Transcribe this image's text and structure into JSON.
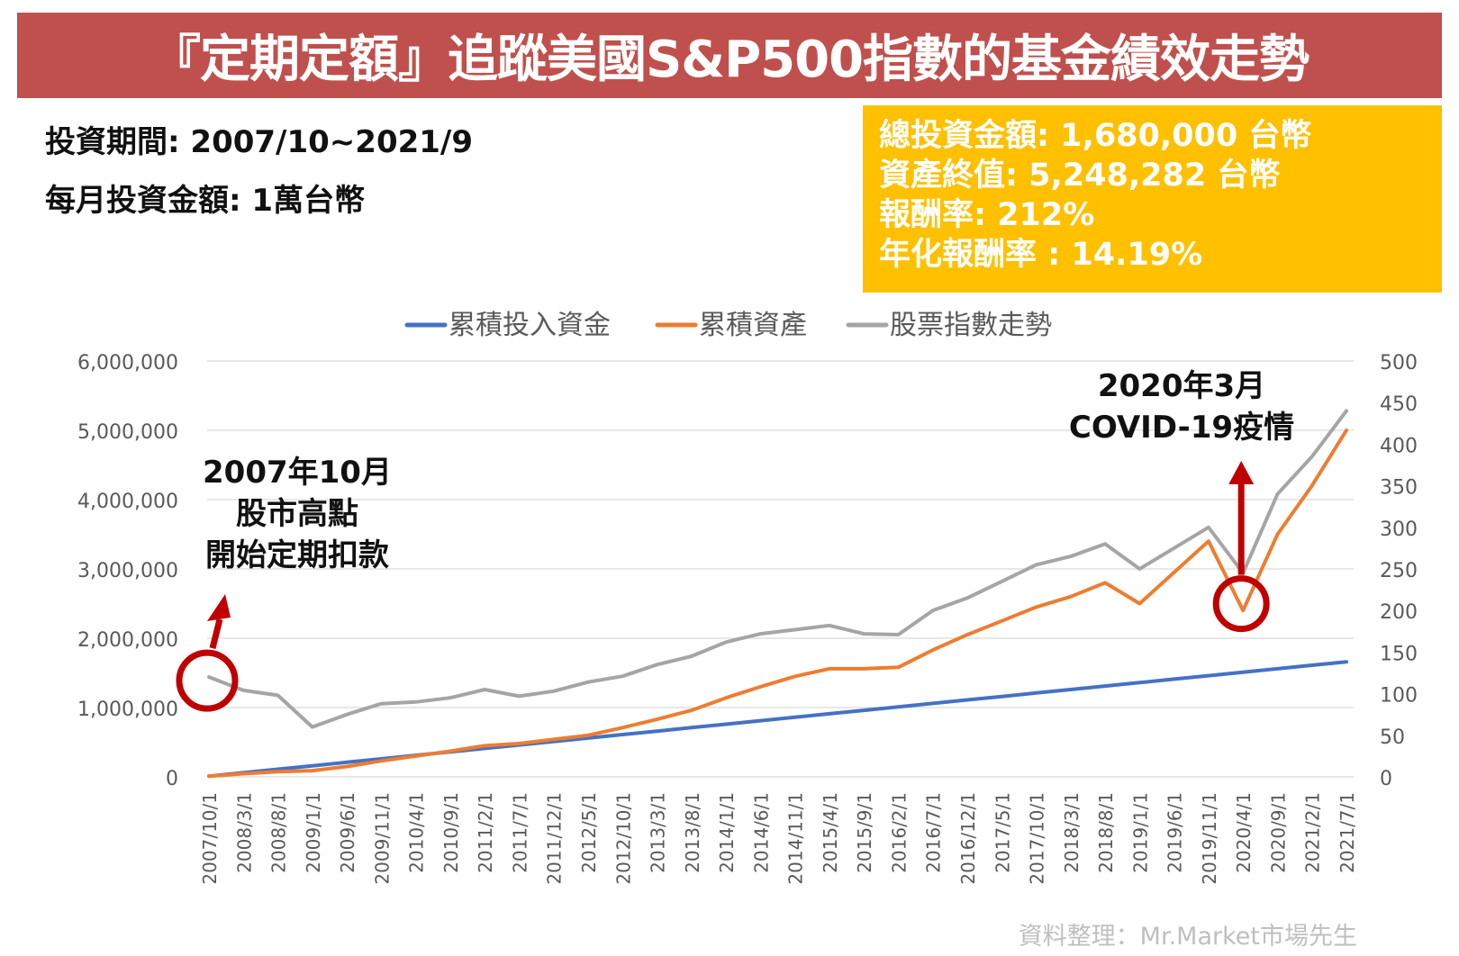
{
  "header": {
    "title": "『定期定額』追蹤美國S&P500指數的基金績效走勢"
  },
  "info": {
    "period": "投資期間: 2007/10~2021/9",
    "monthly": "每月投資金額: 1萬台幣"
  },
  "summary": {
    "total_invested": "總投資金額: 1,680,000 台幣",
    "final_value": "資產終值: 5,248,282 台幣",
    "return_rate": "報酬率: 212%",
    "annualized": "年化報酬率 : 14.19%"
  },
  "annotations": {
    "start_lines": [
      "2007年10月",
      "股市高點",
      "開始定期扣款"
    ],
    "covid_lines": [
      "2020年3月",
      "COVID-19疫情"
    ]
  },
  "source": "資料整理：Mr.Market市場先生",
  "colors": {
    "title_bg": "#c0504d",
    "summary_bg": "#ffc000",
    "invested": "#4472c4",
    "assets": "#ed7d31",
    "index": "#a5a5a5",
    "annotation": "#c00000"
  },
  "chart_data": {
    "type": "line",
    "legend": [
      "累積投入資金",
      "累積資產",
      "股票指數走勢"
    ],
    "legend_position": "top",
    "left_axis": {
      "ylim": [
        0,
        6000000
      ],
      "ticks": [
        "0",
        "1,000,000",
        "2,000,000",
        "3,000,000",
        "4,000,000",
        "5,000,000",
        "6,000,000"
      ]
    },
    "right_axis": {
      "ylim": [
        0,
        500
      ],
      "ticks": [
        "0",
        "50",
        "100",
        "150",
        "200",
        "250",
        "300",
        "350",
        "400",
        "450",
        "500"
      ]
    },
    "x_labels": [
      "2007/10/1",
      "2008/3/1",
      "2008/8/1",
      "2009/1/1",
      "2009/6/1",
      "2009/11/1",
      "2010/4/1",
      "2010/9/1",
      "2011/2/1",
      "2011/7/1",
      "2011/12/1",
      "2012/5/1",
      "2012/10/1",
      "2013/3/1",
      "2013/8/1",
      "2014/1/1",
      "2014/6/1",
      "2014/11/1",
      "2015/4/1",
      "2015/9/1",
      "2016/2/1",
      "2016/7/1",
      "2016/12/1",
      "2017/5/1",
      "2017/10/1",
      "2018/3/1",
      "2018/8/1",
      "2019/1/1",
      "2019/6/1",
      "2019/11/1",
      "2020/4/1",
      "2020/9/1",
      "2021/2/1",
      "2021/7/1"
    ],
    "series": [
      {
        "name": "累積投入資金",
        "axis": "left",
        "values": [
          10000,
          60000,
          110000,
          160000,
          210000,
          260000,
          310000,
          360000,
          410000,
          460000,
          510000,
          560000,
          610000,
          660000,
          710000,
          760000,
          810000,
          860000,
          910000,
          960000,
          1010000,
          1060000,
          1110000,
          1160000,
          1210000,
          1260000,
          1310000,
          1360000,
          1410000,
          1460000,
          1510000,
          1560000,
          1610000,
          1660000
        ]
      },
      {
        "name": "累積資產",
        "axis": "left",
        "values": [
          10000,
          45000,
          75000,
          90000,
          150000,
          230000,
          300000,
          370000,
          450000,
          480000,
          540000,
          600000,
          710000,
          830000,
          960000,
          1140000,
          1300000,
          1450000,
          1560000,
          1560000,
          1580000,
          1830000,
          2050000,
          2250000,
          2450000,
          2600000,
          2800000,
          2500000,
          2950000,
          3400000,
          2400000,
          3500000,
          4200000,
          5000000
        ]
      },
      {
        "name": "股票指數走勢",
        "axis": "right",
        "values": [
          120,
          104,
          98,
          60,
          75,
          88,
          90,
          95,
          105,
          97,
          103,
          114,
          121,
          135,
          145,
          162,
          172,
          177,
          182,
          172,
          171,
          200,
          215,
          235,
          255,
          265,
          280,
          250,
          275,
          300,
          245,
          340,
          385,
          440
        ]
      }
    ]
  }
}
